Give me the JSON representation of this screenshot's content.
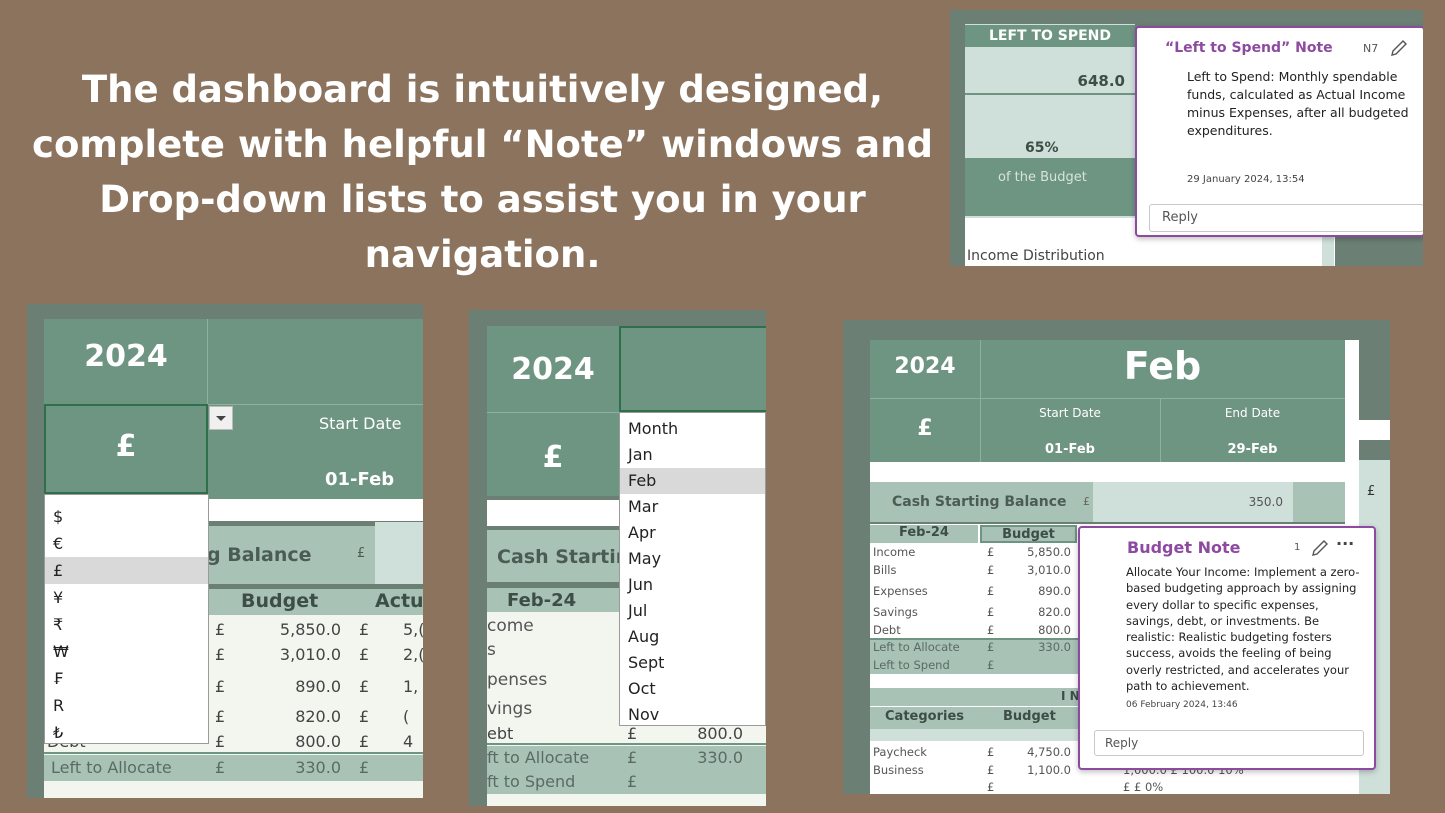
{
  "headline": "The dashboard is intuitively designed, complete with helpful “Note” windows and Drop-down lists to assist you in your navigation.",
  "panel1": {
    "left_to_spend_label": "LEFT TO SPEND",
    "value": "648.0",
    "percent": "65%",
    "of_budget": "of the Budget",
    "income_distribution": "Income Distribution",
    "note": {
      "title": "“Left to Spend” Note",
      "cell_ref": "N7",
      "body": "Left to Spend: Monthly spendable funds, calculated as Actual Income minus Expenses, after all budgeted expenditures.",
      "timestamp": "29 January 2024, 13:54",
      "reply_placeholder": "Reply"
    }
  },
  "panel2": {
    "year": "2024",
    "currency": "£",
    "start_date_label": "Start Date",
    "start_date": "01-Feb",
    "balance_label": "g Balance",
    "budget_header": "Budget",
    "actual_header": "Actu",
    "currency_options": [
      "$",
      "€",
      "£",
      "¥",
      "₹",
      "₩",
      "₣",
      "R",
      "₺"
    ],
    "selected_currency": "£",
    "rows": [
      {
        "cur": "£",
        "val": "5,850.0",
        "cur2": "£",
        "act": "5,("
      },
      {
        "cur": "£",
        "val": "3,010.0",
        "cur2": "£",
        "act": "2,("
      },
      {
        "cur": "£",
        "val": "890.0",
        "cur2": "£",
        "act": "1,"
      },
      {
        "cur": "£",
        "val": "820.0",
        "cur2": "£",
        "act": "("
      },
      {
        "label": "Debt",
        "cur": "£",
        "val": "800.0",
        "cur2": "£",
        "act": "4"
      },
      {
        "label": "Left to Allocate",
        "cur": "£",
        "val": "330.0",
        "cur2": "£",
        "act": ""
      }
    ]
  },
  "panel3": {
    "year": "2024",
    "currency": "£",
    "balance_label": "Cash Startin",
    "month_header": "Feb-24",
    "month_options": [
      "Month",
      "Jan",
      "Feb",
      "Mar",
      "Apr",
      "May",
      "Jun",
      "Jul",
      "Aug",
      "Sept",
      "Oct",
      "Nov"
    ],
    "selected_month": "Feb",
    "row_labels": [
      "come",
      "s",
      "penses",
      "vings",
      "ebt",
      "ft to Allocate",
      "ft to Spend"
    ],
    "debt_cur": "£",
    "debt_val": "800.0",
    "alloc_cur": "£",
    "alloc_val": "330.0",
    "spend_cur": "£"
  },
  "panel4": {
    "year": "2024",
    "month": "Feb",
    "currency": "£",
    "start_date_label": "Start Date",
    "start_date": "01-Feb",
    "end_date_label": "End Date",
    "end_date": "29-Feb",
    "balance_label": "Cash Starting Balance",
    "balance_cur": "£",
    "balance_val": "350.0",
    "right_cur": "£",
    "month_header": "Feb-24",
    "budget_header": "Budget",
    "rows": [
      {
        "label": "Income",
        "cur": "£",
        "val": "5,850.0"
      },
      {
        "label": "Bills",
        "cur": "£",
        "val": "3,010.0"
      },
      {
        "label": "Expenses",
        "cur": "£",
        "val": "890.0"
      },
      {
        "label": "Savings",
        "cur": "£",
        "val": "820.0"
      },
      {
        "label": "Debt",
        "cur": "£",
        "val": "800.0"
      },
      {
        "label": "Left to Allocate",
        "cur": "£",
        "val": "330.0"
      },
      {
        "label": "Left to Spend",
        "cur": "£",
        "val": ""
      }
    ],
    "section_letter": "I N",
    "categories_header": "Categories",
    "budget_header2": "Budget",
    "cat_rows": [
      {
        "label": "Paycheck",
        "cur": "£",
        "val": "4,750.0"
      },
      {
        "label": "Business",
        "cur": "£",
        "val": "1,100.0",
        "tail": "1,000.0   £   100.0   10%"
      },
      {
        "label": "",
        "cur": "£",
        "val": "",
        "tail": "£                  £                  0%"
      }
    ],
    "note": {
      "title": "Budget Note",
      "count": "1",
      "body": "Allocate Your Income: Implement a zero-based budgeting approach by assigning every dollar to specific expenses, savings, debt, or investments. Be realistic: Realistic budgeting fosters success, avoids the feeling of being overly restricted, and accelerates your path to achievement.",
      "timestamp": "06 February 2024, 13:46",
      "reply_placeholder": "Reply"
    }
  },
  "colors": {
    "background": "#8b735d",
    "sheet_green": "#6e9482",
    "light_green": "#cfe0da",
    "note_purple": "#8e4aa0"
  }
}
